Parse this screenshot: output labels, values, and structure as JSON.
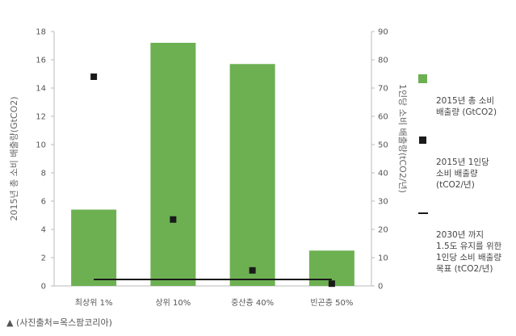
{
  "chart_data": {
    "type": "bar",
    "categories": [
      "최상위 1%",
      "상위 10%",
      "중산층 40%",
      "빈곤층 50%"
    ],
    "series": [
      {
        "name": "2015년 총 소비 배출량 (GtCO2)",
        "type": "bar",
        "axis": "left",
        "color": "#6db052",
        "values": [
          5.4,
          17.2,
          15.7,
          2.5
        ]
      },
      {
        "name": "2015년 1인당 소비 배출량 (tCO2/년)",
        "type": "scatter",
        "axis": "right",
        "color": "#1a1a1a",
        "values": [
          74,
          23.5,
          5.5,
          0.8
        ]
      },
      {
        "name": "2030년 까지 1.5도 유지를 위한 1인당 소비 배출량 목표 (tCO2/년)",
        "type": "line",
        "axis": "right",
        "color": "#1a1a1a",
        "values": [
          2.3,
          2.3,
          2.3,
          2.3
        ]
      }
    ],
    "ylabel": "2015년 총 소비 배출량(GtCO2)",
    "y2label": "1인당 소비 배출량(tCO2/년)",
    "ylim": [
      0,
      18
    ],
    "y_ticks": [
      0,
      2,
      4,
      6,
      8,
      10,
      12,
      14,
      16,
      18
    ],
    "y2lim": [
      0,
      90
    ],
    "y2_ticks": [
      0,
      10,
      20,
      30,
      40,
      50,
      60,
      70,
      80,
      90
    ],
    "grid": false,
    "legend_position": "right"
  },
  "legend": [
    {
      "kind": "bar",
      "text": "2015년 총 소비\n배출량 (GtCO2)"
    },
    {
      "kind": "point",
      "text": "2015년 1인당\n소비 배출량\n(tCO2/년)"
    },
    {
      "kind": "line",
      "text": "2030년 까지\n1.5도 유지를 위한\n1인당 소비 배출량\n목표 (tCO2/년)"
    }
  ],
  "caption": "▲ (사진출처=옥스팜코리아)"
}
